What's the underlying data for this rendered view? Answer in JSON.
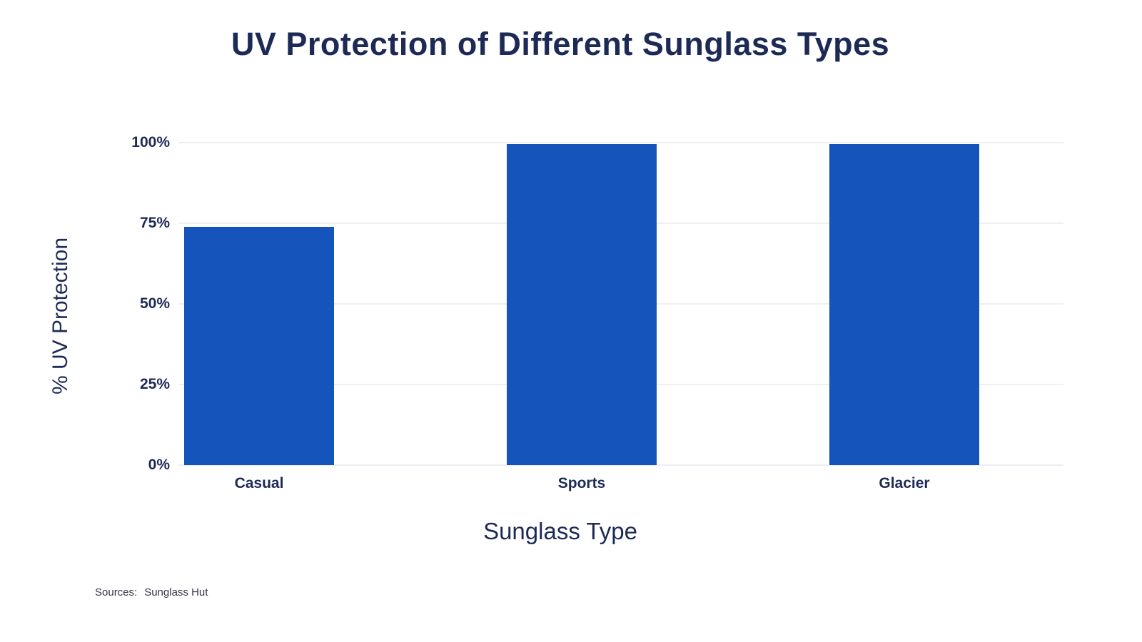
{
  "chart_data": {
    "type": "bar",
    "title": "UV Protection of Different Sunglass Types",
    "xlabel": "Sunglass Type",
    "ylabel": "% UV Protection",
    "categories": [
      "Casual",
      "Sports",
      "Glacier"
    ],
    "values": [
      74,
      99.5,
      99.5
    ],
    "ylim": [
      0,
      100
    ],
    "ytick_labels": [
      "0%",
      "25%",
      "50%",
      "75%",
      "100%"
    ],
    "grid": true,
    "legend": "none",
    "bar_color": "#1554bb",
    "text_color": "#1d2a56",
    "grid_color": "#edeff4"
  },
  "source": {
    "label": "Sources:",
    "value": "Sunglass Hut"
  }
}
